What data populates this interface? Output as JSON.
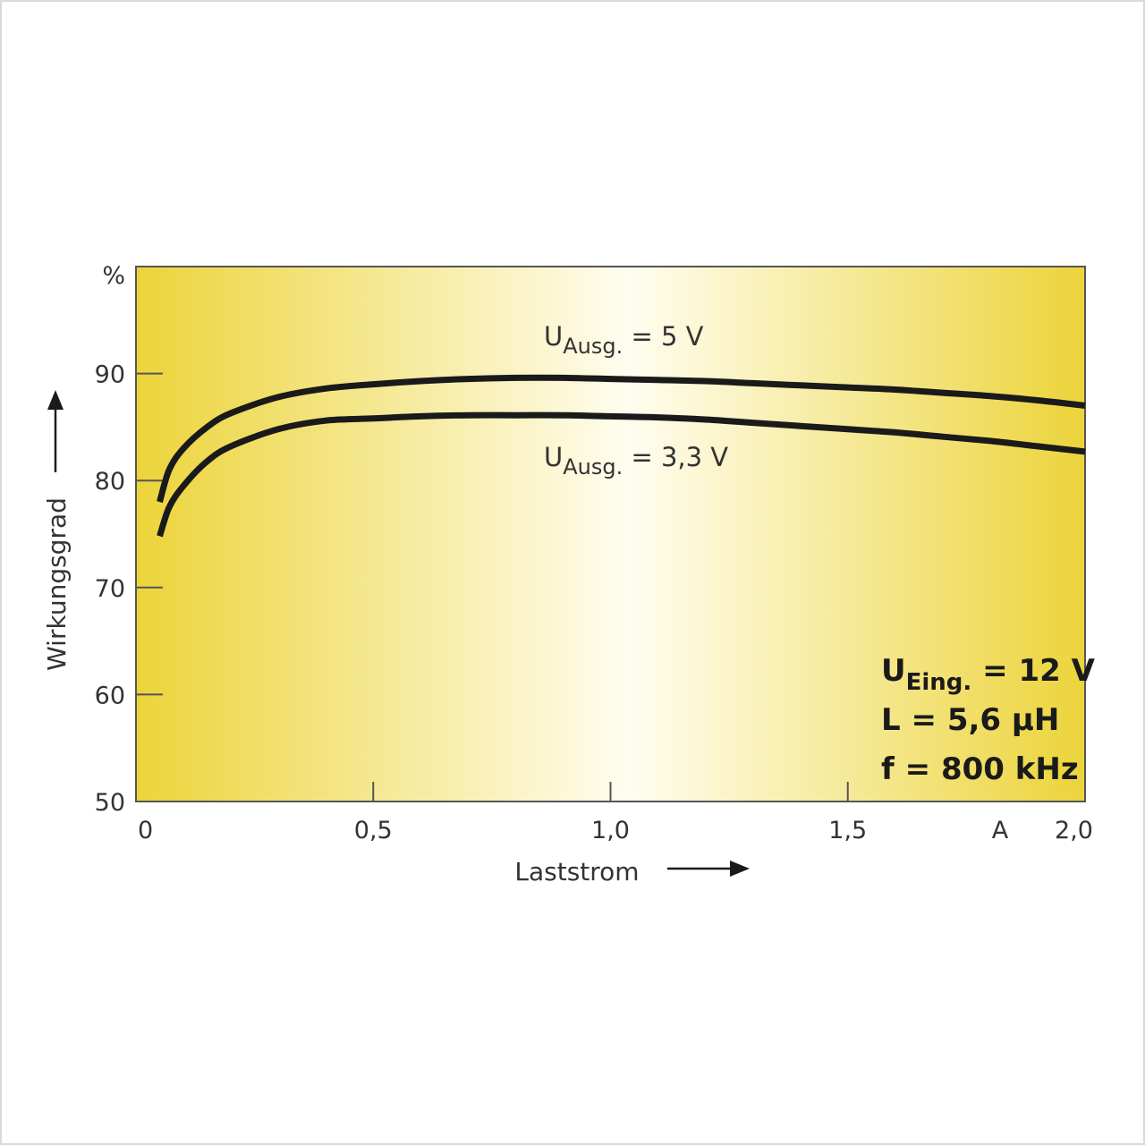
{
  "chart_data": {
    "type": "line",
    "ylabel": "Wirkungsgrad",
    "xlabel": "Laststrom",
    "y_unit": "%",
    "x_unit": "A",
    "xlim": [
      0,
      2.0
    ],
    "ylim": [
      50,
      100
    ],
    "x_ticks": [
      {
        "value": 0,
        "label": "0"
      },
      {
        "value": 0.5,
        "label": "0,5"
      },
      {
        "value": 1.0,
        "label": "1,0"
      },
      {
        "value": 1.5,
        "label": "1,5"
      },
      {
        "value": 2.0,
        "label": "2,0"
      }
    ],
    "y_ticks": [
      {
        "value": 50,
        "label": "50"
      },
      {
        "value": 60,
        "label": "60"
      },
      {
        "value": 70,
        "label": "70"
      },
      {
        "value": 80,
        "label": "80"
      },
      {
        "value": 90,
        "label": "90"
      }
    ],
    "grid": false,
    "series": [
      {
        "label_main": "U",
        "label_sub": "Ausg.",
        "label_rest": " = 5 V",
        "color": "#1a1a1a",
        "x": [
          0.05,
          0.07,
          0.1,
          0.15,
          0.2,
          0.3,
          0.4,
          0.5,
          0.6,
          0.7,
          0.8,
          0.9,
          1.0,
          1.1,
          1.2,
          1.3,
          1.4,
          1.5,
          1.6,
          1.7,
          1.8,
          1.9,
          2.0
        ],
        "y": [
          78.0,
          81.0,
          83.0,
          85.0,
          86.3,
          87.8,
          88.6,
          89.0,
          89.3,
          89.5,
          89.6,
          89.6,
          89.5,
          89.4,
          89.3,
          89.1,
          88.9,
          88.7,
          88.5,
          88.2,
          87.9,
          87.5,
          87.0
        ]
      },
      {
        "label_main": "U",
        "label_sub": "Ausg.",
        "label_rest": " = 3,3 V",
        "color": "#1a1a1a",
        "x": [
          0.05,
          0.07,
          0.1,
          0.15,
          0.2,
          0.3,
          0.4,
          0.5,
          0.6,
          0.7,
          0.8,
          0.9,
          1.0,
          1.1,
          1.2,
          1.3,
          1.4,
          1.5,
          1.6,
          1.7,
          1.8,
          1.9,
          2.0
        ],
        "y": [
          74.8,
          77.5,
          79.5,
          81.8,
          83.2,
          84.8,
          85.6,
          85.8,
          86.0,
          86.1,
          86.1,
          86.1,
          86.0,
          85.9,
          85.7,
          85.4,
          85.1,
          84.8,
          84.5,
          84.1,
          83.7,
          83.2,
          82.7
        ]
      }
    ],
    "annotations": {
      "line1_main": "U",
      "line1_sub": "Eing.",
      "line1_rest": " = 12 V",
      "line2": "L = 5,6 µH",
      "line3": "f = 800 kHz"
    },
    "background": {
      "edge_color": "#ecd43a",
      "center_color": "#fffdf0"
    }
  }
}
